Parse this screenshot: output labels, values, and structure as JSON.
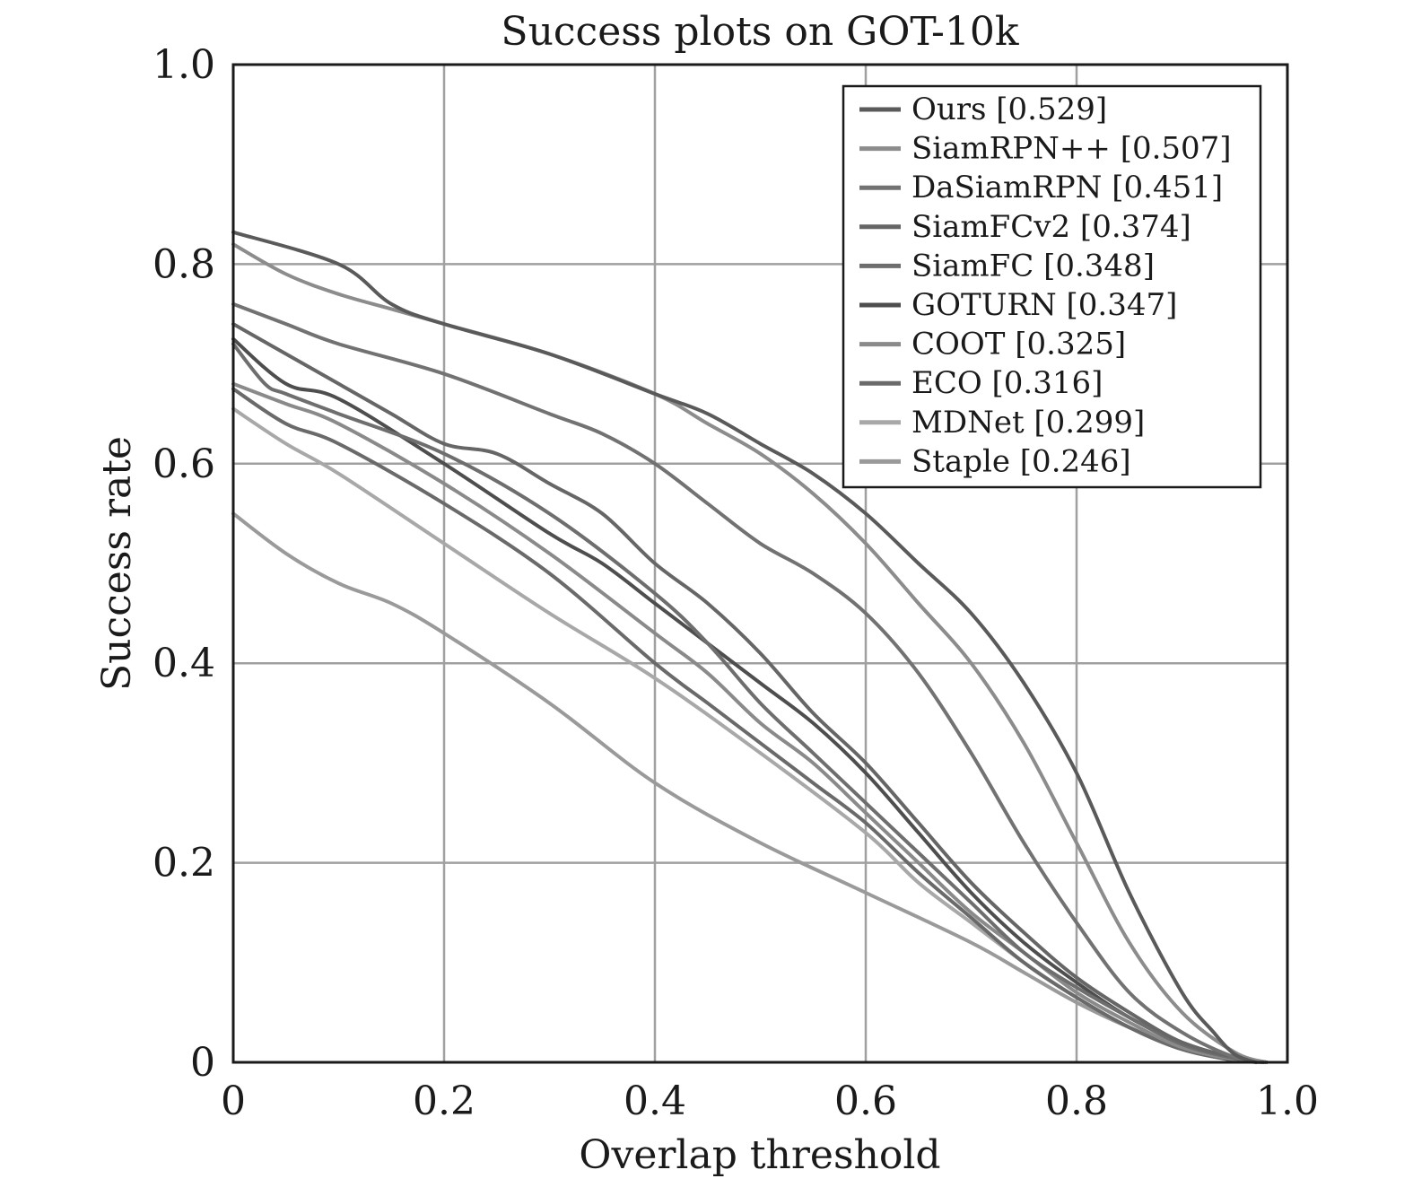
{
  "chart_data": {
    "type": "line",
    "title": "Success plots on GOT-10k",
    "xlabel": "Overlap threshold",
    "ylabel": "Success rate",
    "xlim": [
      0,
      1
    ],
    "ylim": [
      0,
      1
    ],
    "xticks": [
      "0",
      "0.2",
      "0.4",
      "0.6",
      "0.8",
      "1.0"
    ],
    "yticks": [
      "0",
      "0.2",
      "0.4",
      "0.6",
      "0.8",
      "1.0"
    ],
    "grid": true,
    "legend_position": "top-right",
    "series": [
      {
        "name": "Ours [0.529]",
        "color": "#5a5a5a",
        "points": [
          [
            0,
            0.832
          ],
          [
            0.1,
            0.8
          ],
          [
            0.15,
            0.76
          ],
          [
            0.2,
            0.74
          ],
          [
            0.3,
            0.71
          ],
          [
            0.4,
            0.67
          ],
          [
            0.45,
            0.65
          ],
          [
            0.5,
            0.62
          ],
          [
            0.55,
            0.59
          ],
          [
            0.6,
            0.55
          ],
          [
            0.65,
            0.5
          ],
          [
            0.7,
            0.45
          ],
          [
            0.75,
            0.38
          ],
          [
            0.8,
            0.29
          ],
          [
            0.85,
            0.17
          ],
          [
            0.9,
            0.07
          ],
          [
            0.93,
            0.03
          ],
          [
            0.95,
            0.008
          ],
          [
            0.97,
            0
          ]
        ]
      },
      {
        "name": "SiamRPN++ [0.507]",
        "color": "#8c8c8c",
        "points": [
          [
            0,
            0.82
          ],
          [
            0.05,
            0.79
          ],
          [
            0.1,
            0.77
          ],
          [
            0.15,
            0.755
          ],
          [
            0.2,
            0.74
          ],
          [
            0.3,
            0.71
          ],
          [
            0.4,
            0.67
          ],
          [
            0.45,
            0.64
          ],
          [
            0.5,
            0.61
          ],
          [
            0.55,
            0.57
          ],
          [
            0.6,
            0.52
          ],
          [
            0.65,
            0.46
          ],
          [
            0.7,
            0.4
          ],
          [
            0.75,
            0.32
          ],
          [
            0.8,
            0.22
          ],
          [
            0.85,
            0.12
          ],
          [
            0.9,
            0.05
          ],
          [
            0.95,
            0.01
          ],
          [
            0.98,
            0
          ]
        ]
      },
      {
        "name": "DaSiamRPN [0.451]",
        "color": "#727272",
        "points": [
          [
            0,
            0.76
          ],
          [
            0.05,
            0.74
          ],
          [
            0.1,
            0.72
          ],
          [
            0.2,
            0.69
          ],
          [
            0.3,
            0.65
          ],
          [
            0.35,
            0.63
          ],
          [
            0.4,
            0.6
          ],
          [
            0.45,
            0.56
          ],
          [
            0.5,
            0.52
          ],
          [
            0.55,
            0.49
          ],
          [
            0.6,
            0.45
          ],
          [
            0.65,
            0.39
          ],
          [
            0.7,
            0.31
          ],
          [
            0.75,
            0.22
          ],
          [
            0.8,
            0.14
          ],
          [
            0.85,
            0.07
          ],
          [
            0.9,
            0.03
          ],
          [
            0.95,
            0.005
          ],
          [
            0.98,
            0
          ]
        ]
      },
      {
        "name": "SiamFCv2 [0.374]",
        "color": "#666666",
        "points": [
          [
            0,
            0.74
          ],
          [
            0.05,
            0.71
          ],
          [
            0.1,
            0.68
          ],
          [
            0.15,
            0.65
          ],
          [
            0.2,
            0.62
          ],
          [
            0.25,
            0.61
          ],
          [
            0.3,
            0.58
          ],
          [
            0.35,
            0.55
          ],
          [
            0.4,
            0.5
          ],
          [
            0.45,
            0.46
          ],
          [
            0.5,
            0.41
          ],
          [
            0.55,
            0.35
          ],
          [
            0.6,
            0.3
          ],
          [
            0.65,
            0.24
          ],
          [
            0.7,
            0.18
          ],
          [
            0.75,
            0.13
          ],
          [
            0.8,
            0.085
          ],
          [
            0.85,
            0.05
          ],
          [
            0.9,
            0.02
          ],
          [
            0.95,
            0.005
          ],
          [
            0.98,
            0
          ]
        ]
      },
      {
        "name": "SiamFC [0.348]",
        "color": "#6e6e6e",
        "points": [
          [
            0,
            0.72
          ],
          [
            0.03,
            0.68
          ],
          [
            0.05,
            0.67
          ],
          [
            0.1,
            0.65
          ],
          [
            0.2,
            0.61
          ],
          [
            0.3,
            0.55
          ],
          [
            0.4,
            0.47
          ],
          [
            0.45,
            0.42
          ],
          [
            0.5,
            0.36
          ],
          [
            0.55,
            0.31
          ],
          [
            0.6,
            0.26
          ],
          [
            0.65,
            0.21
          ],
          [
            0.7,
            0.16
          ],
          [
            0.75,
            0.11
          ],
          [
            0.8,
            0.075
          ],
          [
            0.85,
            0.045
          ],
          [
            0.9,
            0.018
          ],
          [
            0.95,
            0.004
          ],
          [
            0.98,
            0
          ]
        ]
      },
      {
        "name": "GOTURN [0.347]",
        "color": "#4e4e4e",
        "points": [
          [
            0,
            0.725
          ],
          [
            0.05,
            0.68
          ],
          [
            0.1,
            0.665
          ],
          [
            0.2,
            0.6
          ],
          [
            0.3,
            0.53
          ],
          [
            0.35,
            0.5
          ],
          [
            0.4,
            0.46
          ],
          [
            0.45,
            0.42
          ],
          [
            0.5,
            0.38
          ],
          [
            0.55,
            0.34
          ],
          [
            0.6,
            0.29
          ],
          [
            0.65,
            0.23
          ],
          [
            0.7,
            0.17
          ],
          [
            0.75,
            0.12
          ],
          [
            0.8,
            0.08
          ],
          [
            0.85,
            0.045
          ],
          [
            0.9,
            0.02
          ],
          [
            0.95,
            0.004
          ],
          [
            0.98,
            0
          ]
        ]
      },
      {
        "name": "COOT [0.325]",
        "color": "#8a8a8a",
        "points": [
          [
            0,
            0.68
          ],
          [
            0.05,
            0.66
          ],
          [
            0.1,
            0.64
          ],
          [
            0.2,
            0.58
          ],
          [
            0.3,
            0.51
          ],
          [
            0.4,
            0.43
          ],
          [
            0.45,
            0.39
          ],
          [
            0.5,
            0.34
          ],
          [
            0.55,
            0.3
          ],
          [
            0.6,
            0.25
          ],
          [
            0.65,
            0.2
          ],
          [
            0.7,
            0.15
          ],
          [
            0.75,
            0.11
          ],
          [
            0.8,
            0.07
          ],
          [
            0.85,
            0.04
          ],
          [
            0.9,
            0.015
          ],
          [
            0.95,
            0.003
          ],
          [
            0.98,
            0
          ]
        ]
      },
      {
        "name": "ECO [0.316]",
        "color": "#6a6a6a",
        "points": [
          [
            0,
            0.675
          ],
          [
            0.05,
            0.64
          ],
          [
            0.1,
            0.62
          ],
          [
            0.2,
            0.56
          ],
          [
            0.3,
            0.49
          ],
          [
            0.4,
            0.4
          ],
          [
            0.45,
            0.36
          ],
          [
            0.5,
            0.32
          ],
          [
            0.55,
            0.28
          ],
          [
            0.6,
            0.24
          ],
          [
            0.65,
            0.19
          ],
          [
            0.7,
            0.145
          ],
          [
            0.75,
            0.1
          ],
          [
            0.8,
            0.065
          ],
          [
            0.85,
            0.035
          ],
          [
            0.9,
            0.013
          ],
          [
            0.95,
            0.002
          ],
          [
            0.98,
            0
          ]
        ]
      },
      {
        "name": "MDNet [0.299]",
        "color": "#a8a8a8",
        "points": [
          [
            0,
            0.655
          ],
          [
            0.05,
            0.62
          ],
          [
            0.1,
            0.59
          ],
          [
            0.2,
            0.52
          ],
          [
            0.3,
            0.45
          ],
          [
            0.4,
            0.385
          ],
          [
            0.5,
            0.31
          ],
          [
            0.6,
            0.23
          ],
          [
            0.65,
            0.18
          ],
          [
            0.7,
            0.14
          ],
          [
            0.75,
            0.1
          ],
          [
            0.8,
            0.065
          ],
          [
            0.85,
            0.035
          ],
          [
            0.9,
            0.013
          ],
          [
            0.95,
            0.002
          ],
          [
            0.98,
            0
          ]
        ]
      },
      {
        "name": "Staple [0.246]",
        "color": "#9a9a9a",
        "points": [
          [
            0,
            0.55
          ],
          [
            0.05,
            0.51
          ],
          [
            0.1,
            0.48
          ],
          [
            0.15,
            0.46
          ],
          [
            0.2,
            0.43
          ],
          [
            0.3,
            0.36
          ],
          [
            0.4,
            0.28
          ],
          [
            0.5,
            0.22
          ],
          [
            0.6,
            0.17
          ],
          [
            0.7,
            0.12
          ],
          [
            0.75,
            0.09
          ],
          [
            0.8,
            0.06
          ],
          [
            0.85,
            0.035
          ],
          [
            0.9,
            0.015
          ],
          [
            0.95,
            0.003
          ],
          [
            0.98,
            0
          ]
        ]
      }
    ]
  }
}
